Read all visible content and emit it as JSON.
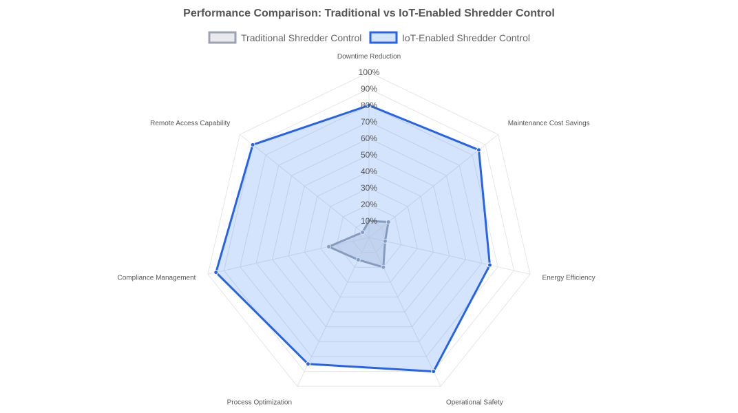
{
  "chart_data": {
    "type": "radar",
    "title": "Performance Comparison: Traditional vs IoT-Enabled Shredder Control",
    "axes": [
      "Downtime Reduction",
      "Maintenance Cost Savings",
      "Energy Efficiency",
      "Operational Safety",
      "Process Optimization",
      "Compliance Management",
      "Remote Access Capability"
    ],
    "r_range": [
      0,
      100
    ],
    "tick_labels": [
      "10%",
      "20%",
      "30%",
      "40%",
      "50%",
      "60%",
      "70%",
      "80%",
      "90%",
      "100%"
    ],
    "grid": true,
    "legend_position": "top",
    "series": [
      {
        "name": "Traditional Shredder Control",
        "values": [
          10,
          15,
          10,
          20,
          15,
          25,
          5
        ],
        "color": "#9ca3af",
        "fill": "rgba(209,213,219,0.5)"
      },
      {
        "name": "IoT-Enabled Shredder Control",
        "values": [
          80,
          85,
          75,
          90,
          85,
          95,
          90
        ],
        "color": "#2563eb",
        "fill": "rgba(59,130,246,0.22)"
      }
    ]
  }
}
